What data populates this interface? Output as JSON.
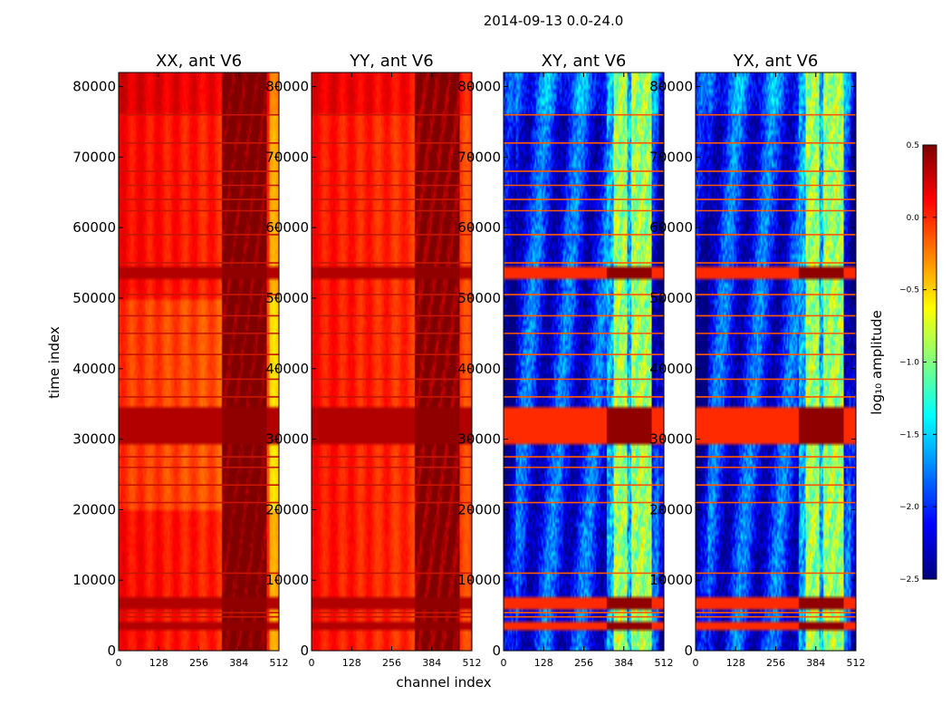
{
  "chart_data": {
    "type": "heatmap",
    "suptitle": "2014-09-13 0.0-24.0",
    "xlabel": "channel index",
    "ylabel": "time index",
    "xlim": [
      0,
      512
    ],
    "ylim": [
      0,
      82000
    ],
    "xticks": [
      0,
      128,
      256,
      384,
      512
    ],
    "yticks": [
      0,
      10000,
      20000,
      30000,
      40000,
      50000,
      60000,
      70000,
      80000
    ],
    "panels": [
      {
        "title": "XX, ant V6",
        "baseline": 0.12,
        "rfi_level": 0.55
      },
      {
        "title": "YY, ant V6",
        "baseline": 0.08,
        "rfi_level": 0.5
      },
      {
        "title": "XY, ant V6",
        "baseline": -2.05,
        "rfi_level": -0.9
      },
      {
        "title": "YX, ant V6",
        "baseline": -2.05,
        "rfi_level": -0.9
      }
    ],
    "rfi_channel_range": [
      330,
      475
    ],
    "strong_bands_time": [
      [
        52500,
        54200
      ],
      [
        29500,
        34500
      ],
      [
        6000,
        7800
      ],
      [
        3200,
        4200
      ]
    ],
    "flag_lines_time": [
      76000,
      72000,
      68000,
      66000,
      64000,
      62400,
      59000,
      55000,
      50500,
      47500,
      45000,
      42000,
      38500,
      36000,
      27500,
      26000,
      23500,
      21000,
      11000,
      5400,
      4800
    ],
    "colorbar": {
      "label": "log₁₀ amplitude",
      "vmin": -2.5,
      "vmax": 0.5,
      "ticks": [
        0.5,
        0.0,
        -0.5,
        -1.0,
        -1.5,
        -2.0,
        -2.5
      ],
      "tick_labels": [
        "0.5",
        "0.0",
        "−0.5",
        "−1.0",
        "−1.5",
        "−2.0",
        "−2.5"
      ]
    }
  }
}
